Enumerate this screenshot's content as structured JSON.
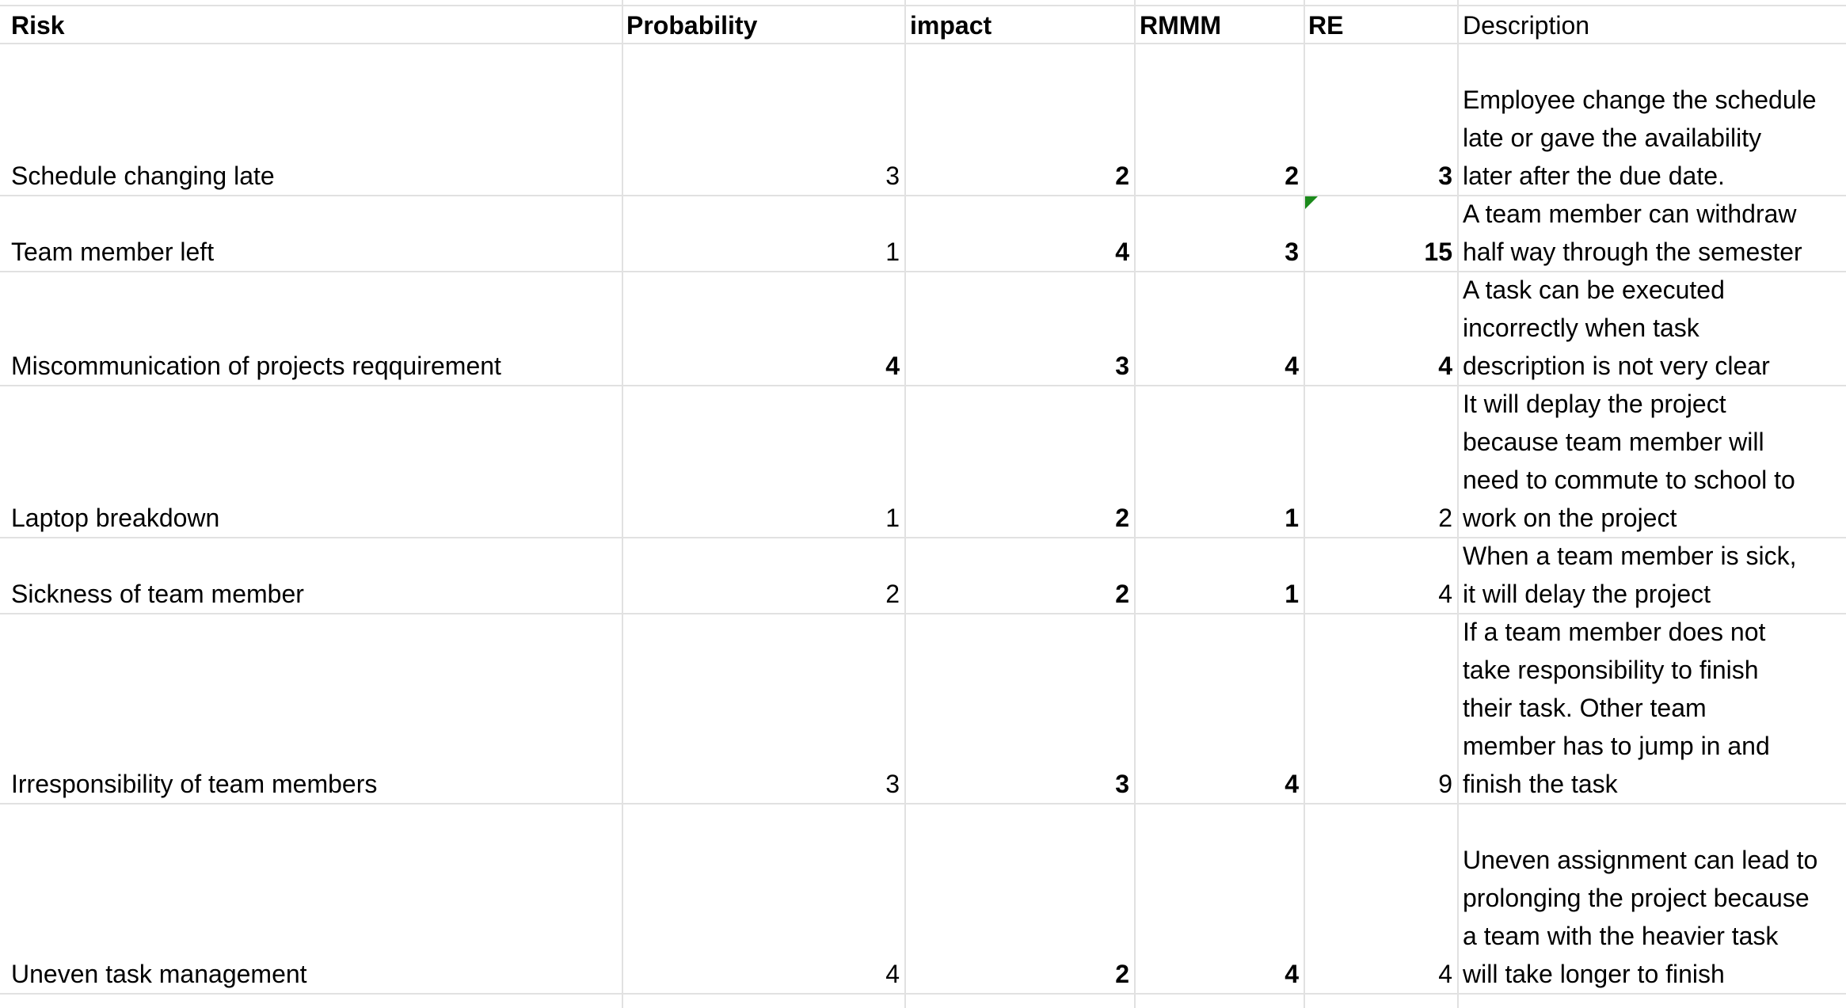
{
  "headers": {
    "risk": "Risk",
    "probability": "Probability",
    "impact": "impact",
    "rmmm": "RMMM",
    "re": "RE",
    "description": "Description"
  },
  "rows": [
    {
      "risk": "Schedule changing late",
      "probability": "3",
      "impact": "2",
      "rmmm": "2",
      "re": "3",
      "description": [
        "Employee change the schedule",
        "late or gave the availability",
        "later after the due date."
      ]
    },
    {
      "risk": "Team member left",
      "probability": "1",
      "impact": "4",
      "rmmm": "3",
      "re": "15",
      "description": [
        "A team member can withdraw",
        "half way through the semester"
      ]
    },
    {
      "risk": "Miscommunication of projects reqquirement",
      "probability": "4",
      "impact": "3",
      "rmmm": "4",
      "re": "4",
      "description": [
        "A task can be executed",
        "incorrectly when task",
        "description is not very clear"
      ]
    },
    {
      "risk": "Laptop breakdown",
      "probability": "1",
      "impact": "2",
      "rmmm": "1",
      "re": "2",
      "description": [
        "It will deplay the project",
        "because team member will",
        "need to commute to school to",
        "work on the project"
      ]
    },
    {
      "risk": "Sickness of team member",
      "probability": "2",
      "impact": "2",
      "rmmm": "1",
      "re": "4",
      "description": [
        "When a team member is sick,",
        "it will delay the project"
      ]
    },
    {
      "risk": "Irresponsibility of team members",
      "probability": "3",
      "impact": "3",
      "rmmm": "4",
      "re": "9",
      "description": [
        "If a team member does not",
        "take responsibility to finish",
        "their task. Other team",
        "member has to jump in and",
        "finish the task"
      ]
    },
    {
      "risk": "Uneven task management",
      "probability": "4",
      "impact": "2",
      "rmmm": "4",
      "re": "4",
      "description": [
        "Uneven assignment can lead to",
        "prolonging the project because",
        "a team with the heavier task",
        "will take longer to finish"
      ]
    }
  ],
  "colors": {
    "gridline": "#e1e1e1",
    "comment_marker": "#1b8a1b",
    "text": "#000000"
  }
}
